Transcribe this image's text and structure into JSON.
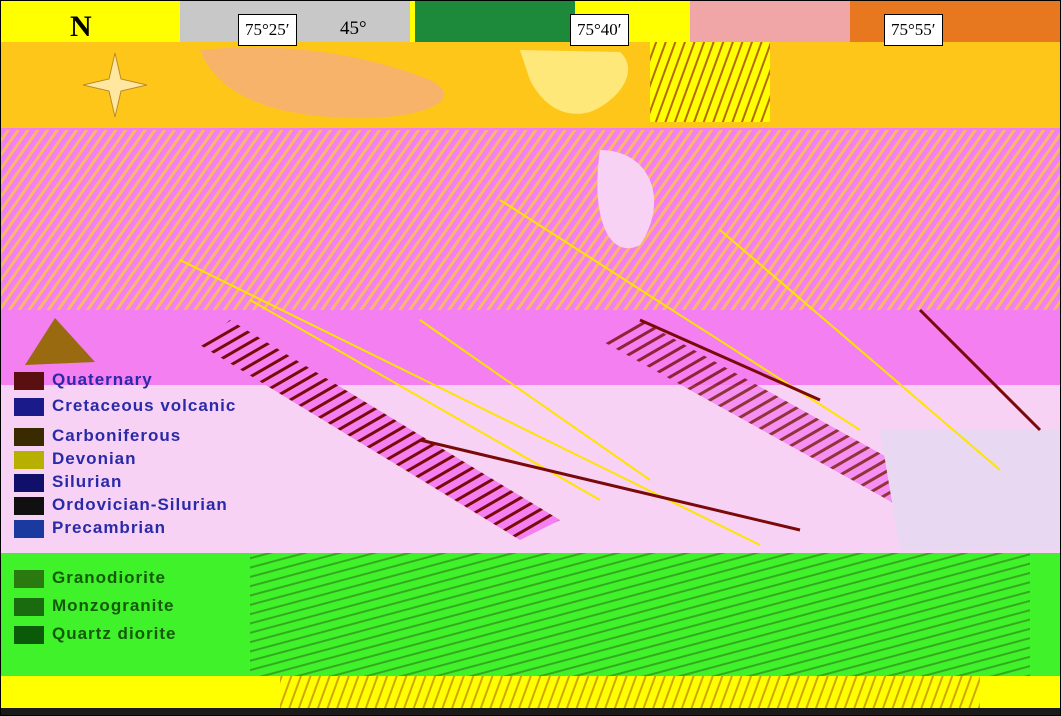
{
  "map": {
    "north_label": "N",
    "coord_labels": [
      "75°25′",
      "75°40′",
      "75°55′"
    ],
    "angle_label": "45°",
    "legend_items": [
      {
        "label": "Quaternary",
        "color": "#5a1010"
      },
      {
        "label": "Cretaceous volcanic",
        "color": "#1a1a8a"
      },
      {
        "label": "Carboniferous",
        "color": "#3a2a00"
      },
      {
        "label": "Devonian",
        "color": "#b8b000"
      },
      {
        "label": "Silurian",
        "color": "#10106a"
      },
      {
        "label": "Ordovician-Silurian",
        "color": "#101010"
      },
      {
        "label": "Precambrian",
        "color": "#1a3aa0"
      }
    ],
    "green_legend": [
      {
        "label": "Granodiorite",
        "color": "#2a7a10"
      },
      {
        "label": "Monzogranite",
        "color": "#1a6a10"
      },
      {
        "label": "Quartz diorite",
        "color": "#0a5a0a"
      }
    ],
    "colors": {
      "pink": "#f37ff0",
      "orange": "#ffc61a",
      "yellow": "#ffff00",
      "green": "#3ff22a",
      "lightpink": "#f7d2f5",
      "darkred": "#7a0a0a"
    }
  }
}
